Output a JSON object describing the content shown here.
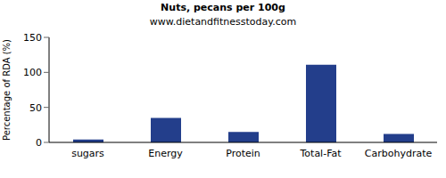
{
  "chart_data": {
    "type": "bar",
    "title": "Nuts, pecans per 100g",
    "subtitle": "www.dietandfitnesstoday.com",
    "y_label": "Percentage of RDA (%)",
    "categories": [
      "sugars",
      "Energy",
      "Protein",
      "Total-Fat",
      "Carbohydrate"
    ],
    "values": [
      4,
      35,
      15,
      111,
      12
    ],
    "color": "#233e8b",
    "ylim": [
      0,
      150
    ],
    "yticks": [
      0,
      50,
      100,
      150
    ],
    "grid": false
  }
}
